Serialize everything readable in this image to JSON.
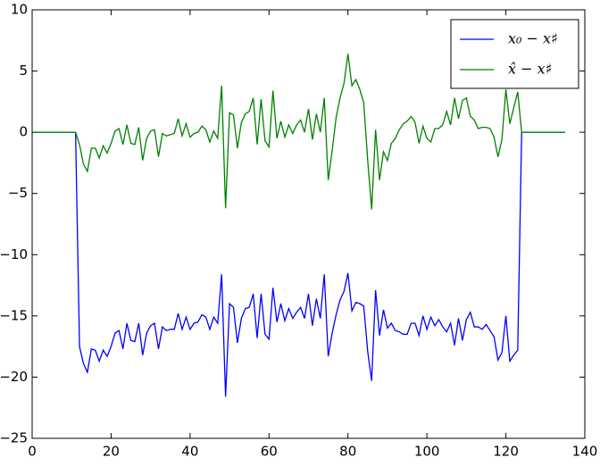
{
  "chart_data": {
    "type": "line",
    "x": [
      0,
      1,
      2,
      3,
      4,
      5,
      6,
      7,
      8,
      9,
      10,
      11,
      12,
      13,
      14,
      15,
      16,
      17,
      18,
      19,
      20,
      21,
      22,
      23,
      24,
      25,
      26,
      27,
      28,
      29,
      30,
      31,
      32,
      33,
      34,
      35,
      36,
      37,
      38,
      39,
      40,
      41,
      42,
      43,
      44,
      45,
      46,
      47,
      48,
      49,
      50,
      51,
      52,
      53,
      54,
      55,
      56,
      57,
      58,
      59,
      60,
      61,
      62,
      63,
      64,
      65,
      66,
      67,
      68,
      69,
      70,
      71,
      72,
      73,
      74,
      75,
      76,
      77,
      78,
      79,
      80,
      81,
      82,
      83,
      84,
      85,
      86,
      87,
      88,
      89,
      90,
      91,
      92,
      93,
      94,
      95,
      96,
      97,
      98,
      99,
      100,
      101,
      102,
      103,
      104,
      105,
      106,
      107,
      108,
      109,
      110,
      111,
      112,
      113,
      114,
      115,
      116,
      117,
      118,
      119,
      120,
      121,
      122,
      123,
      124,
      125,
      126,
      127,
      128,
      129,
      130,
      131,
      132,
      133,
      134,
      135
    ],
    "series": [
      {
        "name": "x₀ − x♯",
        "color": "#0000ff",
        "values": [
          0,
          0,
          0,
          0,
          0,
          0,
          0,
          0,
          0,
          0,
          0,
          0,
          -17.5,
          -18.9,
          -19.6,
          -17.7,
          -17.8,
          -18.7,
          -17.8,
          -18.3,
          -17.5,
          -16.4,
          -16.2,
          -17.7,
          -15.6,
          -17.0,
          -17.1,
          -15.6,
          -18.2,
          -16.4,
          -15.8,
          -15.6,
          -17.7,
          -15.9,
          -16.2,
          -16.1,
          -16.1,
          -14.8,
          -16.1,
          -15.1,
          -16.1,
          -15.6,
          -15.5,
          -14.9,
          -15.1,
          -16.1,
          -15.1,
          -15.6,
          -11.6,
          -21.6,
          -14.0,
          -14.3,
          -17.2,
          -15.2,
          -14.4,
          -14.3,
          -13.2,
          -16.8,
          -13.2,
          -16.5,
          -16.9,
          -12.7,
          -15.5,
          -14.0,
          -15.4,
          -14.4,
          -15.2,
          -14.7,
          -14.3,
          -15.2,
          -13.2,
          -15.8,
          -13.6,
          -15.2,
          -11.6,
          -18.3,
          -16.4,
          -14.9,
          -13.7,
          -13.0,
          -11.5,
          -14.6,
          -13.9,
          -14.0,
          -14.2,
          -17.9,
          -20.3,
          -12.9,
          -16.6,
          -14.5,
          -16.0,
          -15.6,
          -16.2,
          -16.3,
          -16.5,
          -16.5,
          -15.6,
          -15.6,
          -16.6,
          -15.0,
          -16.1,
          -15.1,
          -15.8,
          -15.3,
          -15.9,
          -16.3,
          -15.6,
          -17.4,
          -15.2,
          -17.0,
          -15.3,
          -14.7,
          -15.9,
          -15.9,
          -16.1,
          -15.7,
          -16.2,
          -16.7,
          -18.6,
          -18.0,
          -15.0,
          -18.7,
          -18.2,
          -17.8,
          0,
          0,
          0,
          0,
          0,
          0,
          0,
          0,
          0,
          0,
          0,
          0
        ]
      },
      {
        "name": "x̂ − x♯",
        "color": "#008000",
        "values": [
          0,
          0,
          0,
          0,
          0,
          0,
          0,
          0,
          0,
          0,
          0,
          0,
          -1.0,
          -2.6,
          -3.2,
          -1.3,
          -1.3,
          -2.1,
          -1.1,
          -1.7,
          -0.9,
          0.1,
          0.3,
          -1.0,
          0.6,
          -0.9,
          -1.0,
          0.4,
          -2.3,
          -0.5,
          0.1,
          0.2,
          -2.0,
          -0.1,
          -0.3,
          -0.2,
          -0.1,
          1.1,
          -0.3,
          0.7,
          -0.4,
          -0.1,
          0.0,
          0.5,
          0.2,
          -0.8,
          0.1,
          -0.5,
          3.8,
          -6.2,
          1.6,
          1.4,
          -1.3,
          0.8,
          1.5,
          1.7,
          2.8,
          -1.0,
          2.7,
          -0.7,
          -1.2,
          3.4,
          -0.5,
          0.9,
          -0.4,
          0.6,
          -0.1,
          0.6,
          1.0,
          0.0,
          1.9,
          -0.6,
          1.5,
          0.0,
          2.8,
          -3.9,
          -1.5,
          1.2,
          2.8,
          4.0,
          6.4,
          3.8,
          4.3,
          3.5,
          2.4,
          -2.3,
          -6.3,
          0.2,
          -3.9,
          -1.6,
          -2.3,
          -0.9,
          -0.5,
          0.2,
          0.7,
          0.9,
          1.3,
          0.8,
          -0.9,
          0.5,
          -0.5,
          -0.8,
          0.3,
          0.3,
          0.6,
          1.7,
          0.6,
          2.8,
          1.1,
          2.6,
          2.8,
          1.3,
          1.0,
          0.3,
          0.4,
          0.4,
          0.3,
          -0.4,
          -2.0,
          -0.6,
          3.5,
          0.7,
          2.0,
          3.3,
          0,
          0,
          0,
          0,
          0,
          0,
          0,
          0,
          0,
          0,
          0,
          0
        ]
      }
    ],
    "xlim": [
      0,
      140
    ],
    "xticks": [
      0,
      20,
      40,
      60,
      80,
      100,
      120,
      140
    ],
    "ylim": [
      -25,
      10
    ],
    "yticks": [
      {
        "value": -25,
        "label": "−25"
      },
      {
        "value": -20,
        "label": "−20"
      },
      {
        "value": -15,
        "label": "−15"
      },
      {
        "value": -10,
        "label": "−10"
      },
      {
        "value": -5,
        "label": "−5"
      },
      0,
      5,
      10
    ],
    "legend": "upper right"
  }
}
